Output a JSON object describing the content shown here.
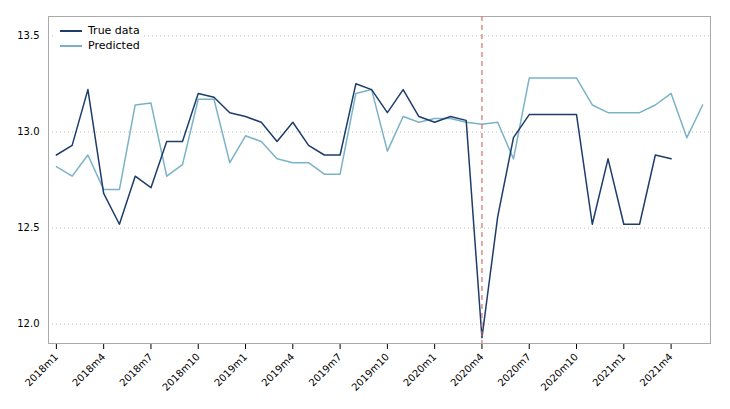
{
  "chart_data": {
    "type": "line",
    "categories": [
      "2018m1",
      null,
      null,
      "2018m4",
      null,
      null,
      "2018m7",
      null,
      null,
      "2018m10",
      null,
      null,
      "2019m1",
      null,
      null,
      "2019m4",
      null,
      null,
      "2019m7",
      null,
      null,
      "2019m10",
      null,
      null,
      "2020m1",
      null,
      null,
      "2020m4",
      null,
      null,
      "2020m7",
      null,
      null,
      "2020m10",
      null,
      null,
      "2021m1",
      null,
      null,
      "2021m4",
      null,
      null
    ],
    "series": [
      {
        "name": "True data",
        "color": "#1d3d6b",
        "values": [
          12.88,
          12.93,
          13.22,
          12.68,
          12.52,
          12.77,
          12.71,
          12.95,
          12.95,
          13.2,
          13.18,
          13.1,
          13.08,
          13.05,
          12.95,
          13.05,
          12.93,
          12.88,
          12.88,
          13.25,
          13.22,
          13.1,
          13.22,
          13.08,
          13.05,
          13.08,
          13.06,
          11.93,
          12.56,
          12.97,
          13.09,
          13.09,
          13.09,
          13.09,
          12.52,
          12.86,
          12.52,
          12.52,
          12.88,
          12.86,
          null,
          null
        ]
      },
      {
        "name": "Predicted",
        "color": "#7ab3c8",
        "values": [
          12.82,
          12.77,
          12.88,
          12.7,
          12.7,
          13.14,
          13.15,
          12.77,
          12.83,
          13.17,
          13.17,
          12.84,
          12.98,
          12.95,
          12.86,
          12.84,
          12.84,
          12.78,
          12.78,
          13.2,
          13.22,
          12.9,
          13.08,
          13.05,
          13.07,
          13.07,
          13.05,
          13.04,
          13.05,
          12.86,
          13.28,
          13.28,
          13.28,
          13.28,
          13.14,
          13.1,
          13.1,
          13.1,
          13.14,
          13.2,
          12.97,
          13.14
        ]
      }
    ],
    "vline": {
      "category": "2020m4",
      "color": "#d4706a",
      "line_style": "dashed"
    },
    "ylim": [
      11.9,
      13.6
    ],
    "yticks": [
      {
        "value": 12.0,
        "label": "12.0"
      },
      12.5,
      {
        "value": 13.0,
        "label": "13.0"
      },
      13.5
    ],
    "grid": true,
    "legend": "upper left"
  }
}
